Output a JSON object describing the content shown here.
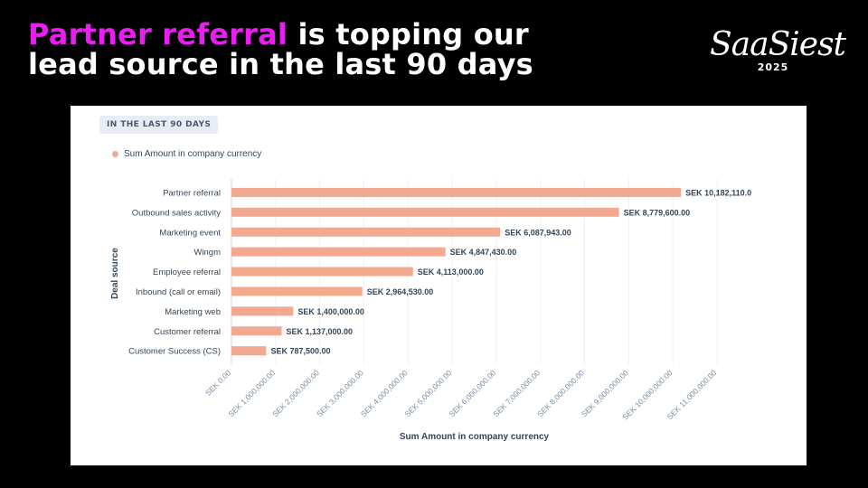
{
  "headline": {
    "highlight": "Partner referral",
    "rest_line1": " is topping our",
    "line2": "lead source in the last 90 days"
  },
  "logo": {
    "word": "SaaSiest",
    "year": "2025"
  },
  "card": {
    "badge": "IN THE LAST 90 DAYS"
  },
  "colors": {
    "bar": "#f2a98f",
    "highlight": "#e91ef0",
    "background": "#000000"
  },
  "chart_data": {
    "type": "bar",
    "orientation": "horizontal",
    "categories": [
      "Partner referral",
      "Outbound sales activity",
      "Marketing event",
      "Wingm",
      "Employee referral",
      "Inbound (call or email)",
      "Marketing web",
      "Customer referral",
      "Customer Success (CS)"
    ],
    "series": [
      {
        "name": "Sum Amount in company currency",
        "values": [
          10182110.0,
          8779600.0,
          6087943.0,
          4847430.0,
          4113000.0,
          2964530.0,
          1400000.0,
          1137000.0,
          787500.0
        ]
      }
    ],
    "value_labels": [
      "SEK 10,182,110.0",
      "SEK 8,779,600.00",
      "SEK 6,087,943.00",
      "SEK 4,847,430.00",
      "SEK 4,113,000.00",
      "SEK 2,964,530.00",
      "SEK 1,400,000.00",
      "SEK 1,137,000.00",
      "SEK 787,500.00"
    ],
    "xlabel": "Sum Amount in company currency",
    "ylabel": "Deal source",
    "xlim": [
      0,
      11000000
    ],
    "x_ticks": [
      0,
      1000000,
      2000000,
      3000000,
      4000000,
      5000000,
      6000000,
      7000000,
      8000000,
      9000000,
      10000000,
      11000000
    ],
    "x_tick_labels": [
      "SEK 0.00",
      "SEK 1,000,000.00",
      "SEK 2,000,000.00",
      "SEK 3,000,000.00",
      "SEK 4,000,000.00",
      "SEK 5,000,000.00",
      "SEK 6,000,000.00",
      "SEK 7,000,000.00",
      "SEK 8,000,000.00",
      "SEK 9,000,000.00",
      "SEK 10,000,000.00",
      "SEK 11,000,000.00"
    ],
    "grid": "vertical",
    "legend_position": "top-left"
  }
}
